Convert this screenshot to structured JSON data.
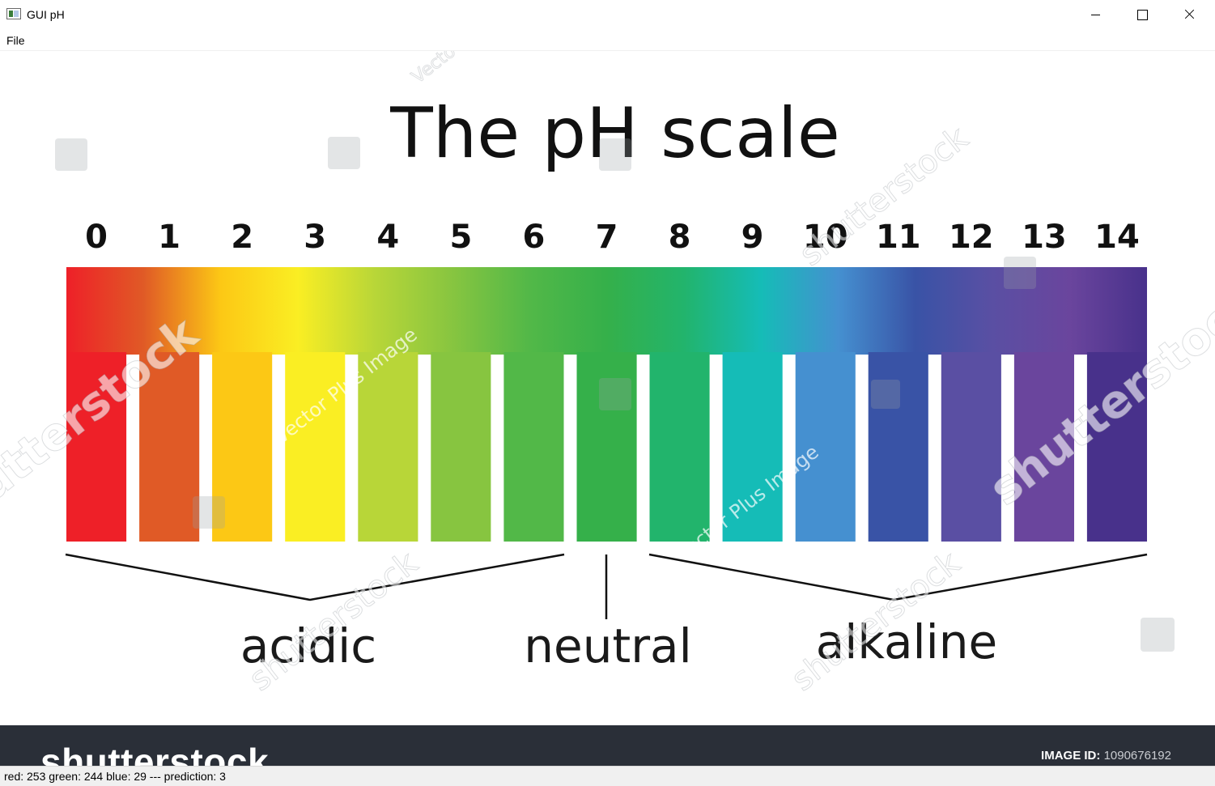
{
  "window": {
    "title": "GUI pH",
    "icon": "app-window-icon"
  },
  "menu": {
    "items": [
      "File"
    ]
  },
  "image": {
    "title": "The pH scale",
    "scale": {
      "numbers": [
        "0",
        "1",
        "2",
        "3",
        "4",
        "5",
        "6",
        "7",
        "8",
        "9",
        "10",
        "11",
        "12",
        "13",
        "14"
      ],
      "swatch_colors": [
        "#ee2028",
        "#e05a26",
        "#fcc815",
        "#faee23",
        "#b8d638",
        "#87c540",
        "#52b848",
        "#35b04a",
        "#22b46c",
        "#15bcb7",
        "#4590d0",
        "#3953a6",
        "#5a4fa3",
        "#6a459d",
        "#48318b"
      ],
      "categories": [
        "acidic",
        "neutral",
        "alkaline"
      ]
    },
    "watermarks": {
      "brand": "shutterstock",
      "contributor": "Vector Plus Image",
      "fragment": "Vecto"
    },
    "footer": {
      "brand": "shutterstock",
      "image_id_label": "IMAGE ID:",
      "image_id": "1090676192"
    }
  },
  "status": {
    "text": "red: 253  green: 244  blue: 29 --- prediction: 3"
  }
}
